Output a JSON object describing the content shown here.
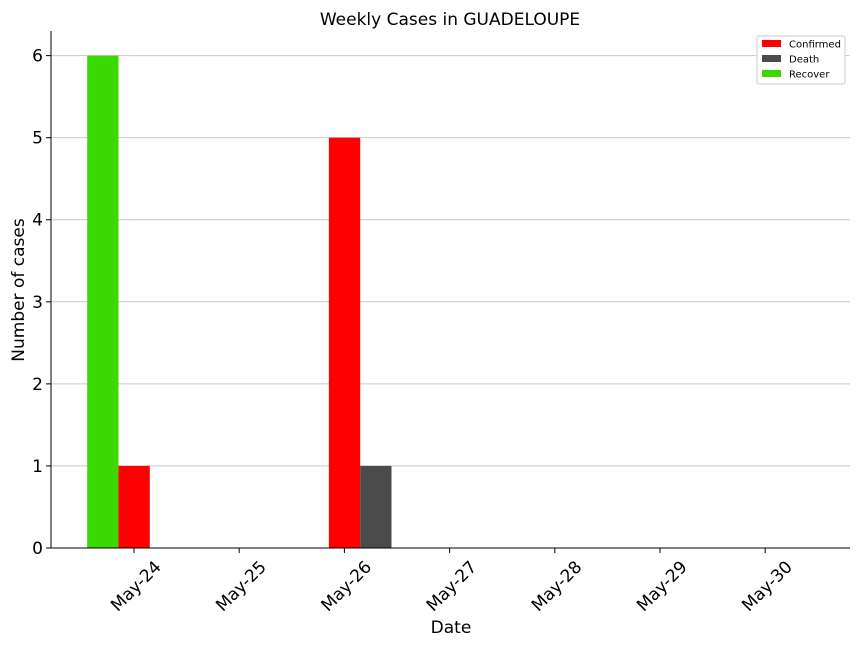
{
  "chart_data": {
    "type": "bar",
    "title": "Weekly Cases in GUADELOUPE",
    "xlabel": "Date",
    "ylabel": "Number of cases",
    "categories": [
      "May-24",
      "May-25",
      "May-26",
      "May-27",
      "May-28",
      "May-29",
      "May-30"
    ],
    "series": [
      {
        "name": "Confirmed",
        "color": "#ff0000",
        "values": [
          1,
          0,
          5,
          0,
          0,
          0,
          0
        ]
      },
      {
        "name": "Death",
        "color": "#4b4b4b",
        "values": [
          0,
          0,
          1,
          0,
          0,
          0,
          0
        ]
      },
      {
        "name": "Recover",
        "color": "#3cd900",
        "values": [
          6,
          0,
          0,
          0,
          0,
          0,
          0
        ]
      }
    ],
    "ylim": [
      0,
      6.3
    ],
    "yticks": [
      0,
      1,
      2,
      3,
      4,
      5,
      6
    ],
    "grid": "horizontal",
    "legend": "top-right"
  }
}
